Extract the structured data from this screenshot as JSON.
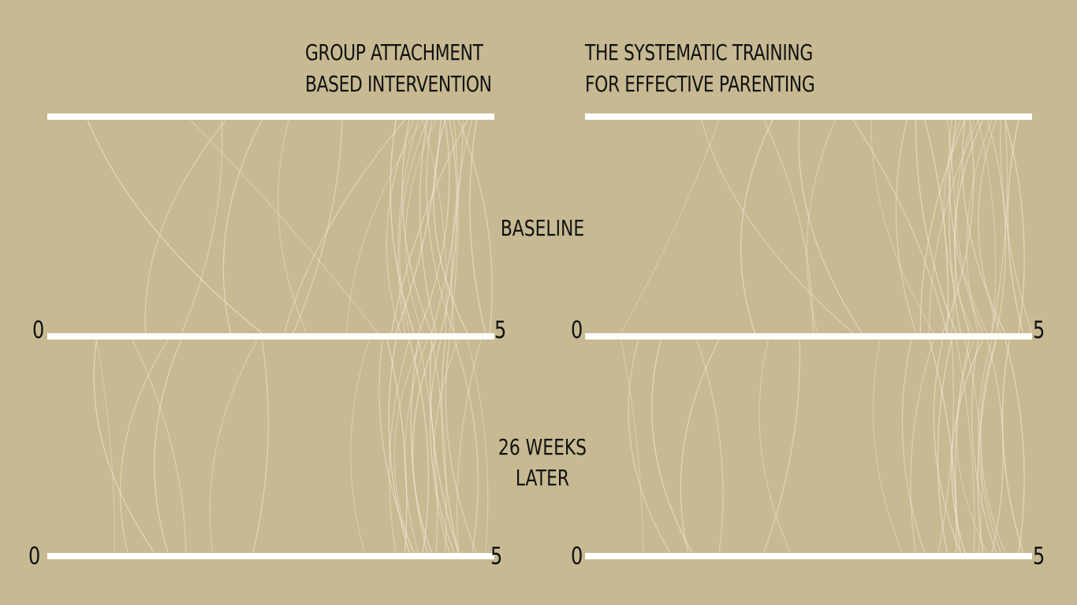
{
  "chart_data": {
    "type": "arc",
    "panels": [
      {
        "column_title": [
          "GROUP ATTACHMENT",
          "BASED INTERVENTION"
        ],
        "row_label": [
          "BASELINE"
        ]
      },
      {
        "column_title": [
          "THE SYSTEMATIC TRAINING",
          "FOR EFFECTIVE PARENTING"
        ],
        "row_label": [
          "BASELINE"
        ]
      },
      {
        "column_title": [
          "GROUP ATTACHMENT",
          "BASED INTERVENTION"
        ],
        "row_label": [
          "26 WEEKS",
          "LATER"
        ]
      },
      {
        "column_title": [
          "THE SYSTEMATIC TRAINING",
          "FOR EFFECTIVE PARENTING"
        ],
        "row_label": [
          "26 WEEKS",
          "LATER"
        ]
      }
    ],
    "columns": [
      {
        "title_line1": "GROUP ATTACHMENT",
        "title_line2": "BASED INTERVENTION"
      },
      {
        "title_line1": "THE SYSTEMATIC TRAINING",
        "title_line2": "FOR EFFECTIVE PARENTING"
      }
    ],
    "rows": [
      {
        "label_line1": "BASELINE",
        "label_line2": ""
      },
      {
        "label_line1": "26 WEEKS",
        "label_line2": "LATER"
      }
    ],
    "axis": {
      "min": 0,
      "max": 5,
      "min_label": "0",
      "max_label": "5"
    },
    "arcs": {
      "gabi_baseline": [
        [
          1.6,
          3.7
        ],
        [
          2.0,
          1.1
        ],
        [
          0.45,
          2.4
        ],
        [
          1.95,
          1.5
        ],
        [
          2.4,
          2.05
        ],
        [
          2.7,
          2.9
        ],
        [
          3.3,
          2.75
        ],
        [
          4.2,
          3.35
        ],
        [
          4.0,
          2.65
        ],
        [
          4.4,
          3.9
        ],
        [
          4.15,
          4.0
        ],
        [
          4.25,
          4.35
        ],
        [
          4.55,
          4.5
        ],
        [
          4.7,
          3.85
        ],
        [
          4.35,
          4.2
        ],
        [
          4.6,
          4.95
        ],
        [
          4.45,
          4.7
        ],
        [
          4.1,
          3.95
        ],
        [
          4.5,
          4.4
        ],
        [
          4.25,
          4.05
        ],
        [
          4.05,
          4.3
        ],
        [
          4.2,
          4.45
        ],
        [
          4.3,
          4.55
        ],
        [
          3.9,
          4.1
        ],
        [
          4.65,
          4.3
        ],
        [
          4.8,
          4.9
        ],
        [
          4.75,
          4.55
        ],
        [
          4.45,
          4.15
        ]
      ],
      "step_baseline": [
        [
          1.5,
          0.4
        ],
        [
          1.3,
          3.0
        ],
        [
          2.1,
          1.9
        ],
        [
          2.0,
          2.55
        ],
        [
          2.4,
          3.1
        ],
        [
          2.8,
          2.6
        ],
        [
          3.0,
          4.05
        ],
        [
          3.2,
          3.9
        ],
        [
          3.6,
          3.7
        ],
        [
          3.8,
          4.05
        ],
        [
          4.4,
          3.85
        ],
        [
          4.25,
          3.75
        ],
        [
          4.05,
          4.1
        ],
        [
          4.15,
          4.2
        ],
        [
          4.35,
          4.5
        ],
        [
          4.5,
          4.6
        ],
        [
          4.45,
          4.3
        ],
        [
          4.6,
          4.65
        ],
        [
          4.7,
          4.85
        ],
        [
          4.55,
          4.4
        ],
        [
          4.25,
          4.7
        ],
        [
          4.4,
          4.55
        ],
        [
          4.1,
          4.45
        ],
        [
          4.85,
          4.9
        ],
        [
          4.7,
          4.55
        ],
        [
          3.7,
          4.15
        ],
        [
          4.65,
          5.0
        ],
        [
          4.3,
          4.0
        ],
        [
          4.2,
          4.35
        ]
      ],
      "gabi_week26": [
        [
          0.55,
          0.75
        ],
        [
          1.35,
          0.9
        ],
        [
          0.55,
          1.2
        ],
        [
          0.95,
          1.55
        ],
        [
          1.5,
          1.35
        ],
        [
          2.35,
          1.85
        ],
        [
          2.4,
          2.3
        ],
        [
          3.6,
          3.55
        ],
        [
          3.75,
          4.1
        ],
        [
          3.8,
          4.0
        ],
        [
          4.05,
          3.9
        ],
        [
          4.15,
          4.25
        ],
        [
          4.3,
          4.45
        ],
        [
          4.45,
          4.6
        ],
        [
          4.2,
          4.1
        ],
        [
          4.55,
          4.75
        ],
        [
          4.35,
          4.3
        ],
        [
          4.6,
          4.5
        ],
        [
          4.05,
          4.2
        ],
        [
          4.25,
          4.15
        ],
        [
          4.4,
          4.55
        ],
        [
          4.7,
          4.9
        ],
        [
          4.5,
          4.8
        ],
        [
          3.9,
          4.05
        ],
        [
          4.15,
          4.35
        ],
        [
          4.3,
          4.6
        ],
        [
          4.85,
          4.6
        ]
      ],
      "step_week26": [
        [
          0.4,
          0.65
        ],
        [
          0.6,
          0.95
        ],
        [
          0.85,
          1.2
        ],
        [
          1.25,
          1.5
        ],
        [
          1.5,
          1.15
        ],
        [
          2.05,
          2.3
        ],
        [
          2.4,
          2.0
        ],
        [
          3.3,
          3.55
        ],
        [
          3.65,
          3.8
        ],
        [
          3.85,
          4.15
        ],
        [
          3.9,
          3.7
        ],
        [
          4.1,
          4.05
        ],
        [
          4.15,
          4.35
        ],
        [
          4.3,
          4.2
        ],
        [
          4.35,
          4.5
        ],
        [
          4.5,
          4.55
        ],
        [
          4.45,
          4.25
        ],
        [
          4.6,
          4.7
        ],
        [
          4.7,
          4.85
        ],
        [
          4.55,
          4.65
        ],
        [
          4.0,
          4.2
        ],
        [
          4.25,
          4.4
        ],
        [
          4.4,
          4.6
        ],
        [
          4.75,
          4.9
        ],
        [
          4.1,
          3.95
        ],
        [
          4.6,
          4.45
        ]
      ]
    }
  }
}
